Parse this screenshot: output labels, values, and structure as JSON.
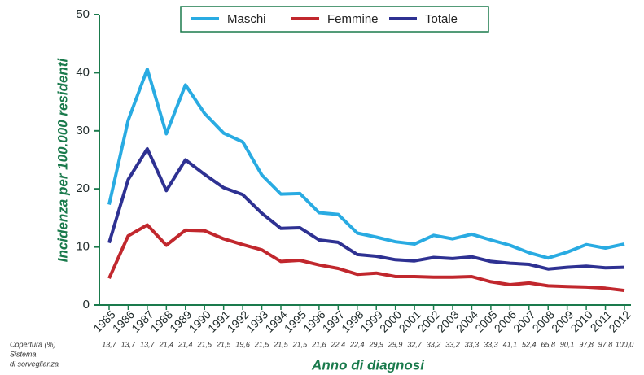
{
  "chart_data": {
    "type": "line",
    "y_label": "Incidenza per 100.000 residenti",
    "x_label": "Anno di diagnosi",
    "categories": [
      "1985",
      "1986",
      "1987",
      "1988",
      "1989",
      "1990",
      "1991",
      "1992",
      "1993",
      "1994",
      "1995",
      "1996",
      "1997",
      "1998",
      "1999",
      "2000",
      "2001",
      "2002",
      "2003",
      "2004",
      "2005",
      "2006",
      "2007",
      "2008",
      "2009",
      "2010",
      "2011",
      "2012"
    ],
    "series": [
      {
        "name": "Maschi",
        "color": "#29abe2",
        "values": [
          17.3,
          31.8,
          40.6,
          29.5,
          37.9,
          33.0,
          29.6,
          28.1,
          22.4,
          19.1,
          19.2,
          15.9,
          15.6,
          12.4,
          11.7,
          10.9,
          10.5,
          12.0,
          11.4,
          12.2,
          11.2,
          10.3,
          9.0,
          8.1,
          9.1,
          10.4,
          9.8,
          10.5
        ]
      },
      {
        "name": "Femmine",
        "color": "#c1272d",
        "values": [
          4.6,
          11.9,
          13.8,
          10.3,
          12.9,
          12.8,
          11.4,
          10.4,
          9.5,
          7.5,
          7.7,
          6.9,
          6.3,
          5.3,
          5.5,
          4.9,
          4.9,
          4.8,
          4.8,
          4.9,
          4.0,
          3.5,
          3.8,
          3.3,
          3.2,
          3.1,
          2.9,
          2.5
        ]
      },
      {
        "name": "Totale",
        "color": "#2e3192",
        "values": [
          10.7,
          21.6,
          26.9,
          19.7,
          25.0,
          22.5,
          20.2,
          19.0,
          15.8,
          13.2,
          13.3,
          11.2,
          10.8,
          8.7,
          8.4,
          7.8,
          7.6,
          8.2,
          8.0,
          8.3,
          7.5,
          7.2,
          7.0,
          6.2,
          6.5,
          6.7,
          6.4,
          6.5
        ]
      }
    ],
    "ylim": [
      0,
      50
    ],
    "yticks": [
      0,
      10,
      20,
      30,
      40,
      50
    ],
    "coverage_label": [
      "Copertura (%)",
      "Sistema",
      "di sorveglianza"
    ],
    "coverage": [
      "13,7",
      "13,7",
      "13,7",
      "21,4",
      "21,4",
      "21,5",
      "21,5",
      "19,6",
      "21,5",
      "21,5",
      "21,5",
      "21,6",
      "22,4",
      "22,4",
      "29,9",
      "29,9",
      "32,7",
      "33,2",
      "33,2",
      "33,3",
      "33,3",
      "41,1",
      "52,4",
      "65,8",
      "90,1",
      "97,8",
      "97,8",
      "100,0"
    ],
    "legend": "top"
  }
}
